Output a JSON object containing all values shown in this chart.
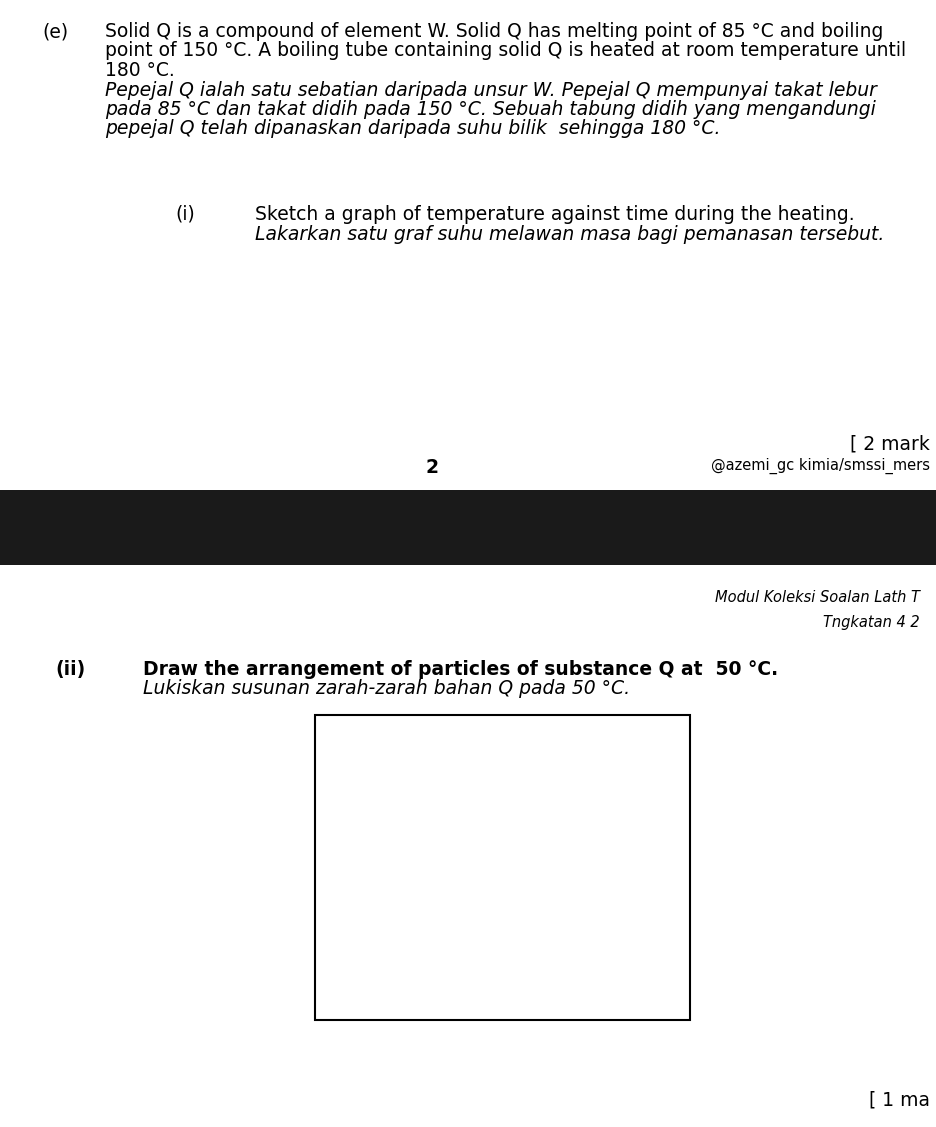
{
  "page_bg": "#ffffff",
  "black_bar_color": "#1a1a1a",
  "text_color": "#000000",
  "main_text_line1": "Solid Q is a compound of element W. Solid Q has melting point of 85 °C and boiling",
  "main_text_line2": "point of 150 °C. A boiling tube containing solid Q is heated at room temperature until",
  "main_text_line3": "180 °C.",
  "main_text_line4": "Pepejal Q ialah satu sebatian daripada unsur W. Pepejal Q mempunyai takat lebur",
  "main_text_line5": "pada 85 °C dan takat didih pada 150 °C. Sebuah tabung didih yang mengandungi",
  "main_text_line6": "pepejal Q telah dipanaskan daripada suhu bilik  sehingga 180 °C.",
  "part_e_label": "(e)",
  "part_i_label": "(i)",
  "part_i_text1": "Sketch a graph of temperature against time during the heating.",
  "part_i_text2": "Lakarkan satu graf suhu melawan masa bagi pemanasan tersebut.",
  "marks_i": "[ 2 mark",
  "page_number": "2",
  "credits": "@azemi_gc kimia/smssi_mers",
  "modul_text1": "Modul Koleksi Soalan Lath T",
  "modul_text2": "Tngkatan 4 2",
  "part_ii_label": "(ii)",
  "part_ii_text1": "Draw the arrangement of particles of substance Q at  50 °C.",
  "part_ii_text2": "Lukiskan susunan zarah-zarah bahan Q pada 50 °C.",
  "marks_ii": "[ 1 ma"
}
